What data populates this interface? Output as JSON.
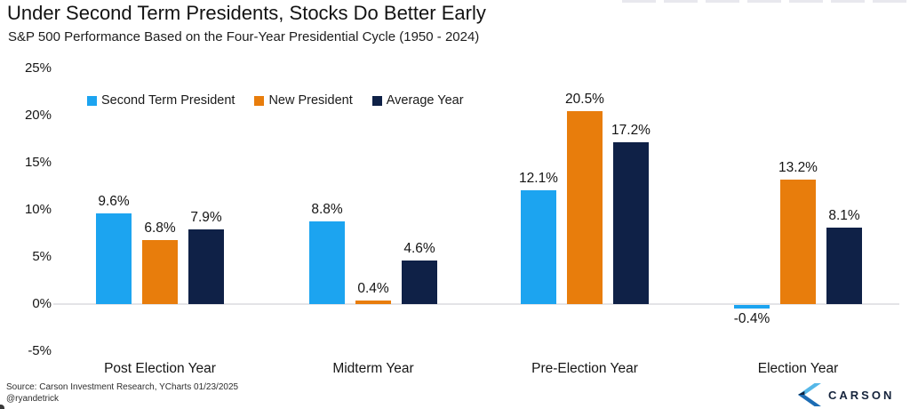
{
  "chart_data": {
    "type": "bar",
    "title": "Under Second Term Presidents, Stocks Do Better Early",
    "subtitle": "S&P 500 Performance Based on the Four-Year Presidential Cycle (1950 - 2024)",
    "categories": [
      "Post Election Year",
      "Midterm Year",
      "Pre-Election Year",
      "Election Year"
    ],
    "series": [
      {
        "name": "Second Term President",
        "color": "#1ca4f0",
        "values": [
          9.6,
          8.8,
          12.1,
          -0.4
        ]
      },
      {
        "name": "New President",
        "color": "#e87d0c",
        "values": [
          6.8,
          0.4,
          20.5,
          13.2
        ]
      },
      {
        "name": "Average Year",
        "color": "#0f2147",
        "values": [
          7.9,
          4.6,
          17.2,
          8.1
        ]
      }
    ],
    "unit": "%",
    "yticks": [
      {
        "label": "25%",
        "value": 25
      },
      {
        "label": "20%",
        "value": 20
      },
      {
        "label": "15%",
        "value": 15
      },
      {
        "label": "10%",
        "value": 10
      },
      {
        "label": "5%",
        "value": 5
      },
      {
        "label": "0%",
        "value": 0
      },
      {
        "label": "-5%",
        "value": -5
      }
    ],
    "ylim": [
      -5,
      25
    ],
    "grid": "zero-line-only",
    "legend_position": "top-left-inside",
    "source": "Source: Carson Investment Research, YCharts 01/23/2025",
    "handle": "@ryandetrick"
  },
  "footer": {
    "logo_text": "CARSON",
    "logo_icon": "carson-chevron-icon"
  },
  "colors": {
    "zero_line": "#e4e4e7",
    "logo_light_blue": "#55b7e8",
    "logo_mid_blue": "#1c6cb4",
    "logo_dark_navy": "#0d2240"
  }
}
